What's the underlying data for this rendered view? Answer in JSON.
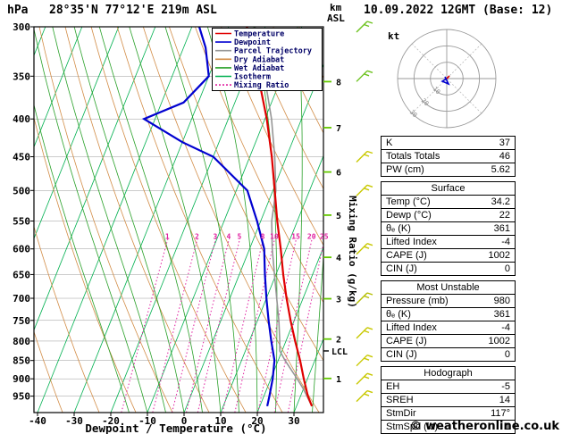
{
  "header": {
    "pressure_unit": "hPa",
    "station": "28°35'N 77°12'E 219m ASL",
    "alt_unit1": "km",
    "alt_unit2": "ASL",
    "datetime": "10.09.2022 12GMT (Base: 12)"
  },
  "footer": {
    "copyright": "© weatheronline.co.uk"
  },
  "legend": [
    {
      "label": "Temperature",
      "color": "#e00000",
      "style": "solid"
    },
    {
      "label": "Dewpoint",
      "color": "#0000d0",
      "style": "solid"
    },
    {
      "label": "Parcel Trajectory",
      "color": "#969696",
      "style": "solid"
    },
    {
      "label": "Dry Adiabat",
      "color": "#d28c46",
      "style": "solid"
    },
    {
      "label": "Wet Adiabat",
      "color": "#28a028",
      "style": "solid"
    },
    {
      "label": "Isotherm",
      "color": "#00b050",
      "style": "solid"
    },
    {
      "label": "Mixing Ratio",
      "color": "#e020a0",
      "style": "dotted"
    }
  ],
  "chart_data": {
    "type": "skewt-log-p-sounding",
    "xlabel": "Dewpoint / Temperature (°C)",
    "pressure_axis_label": "hPa",
    "pressure_ticks": [
      300,
      350,
      400,
      450,
      500,
      550,
      600,
      650,
      700,
      750,
      800,
      850,
      900,
      950
    ],
    "pressure_range": [
      300,
      1000
    ],
    "temp_ticks": [
      -40,
      -30,
      -20,
      -10,
      0,
      10,
      20,
      30
    ],
    "mixing_ratio_axis_label": "Mixing Ratio (g/kg)",
    "mixing_ratio_gkg": [
      1,
      2,
      3,
      4,
      5,
      8,
      10,
      15,
      20,
      25
    ],
    "isotherms_c": {
      "min": -120,
      "max": 40,
      "step": 10
    },
    "dry_adiabats_k": {
      "min": 220,
      "max": 440,
      "step": 10
    },
    "wet_adiabats_c": {
      "min": -15,
      "max": 40,
      "step": 5
    },
    "altitude_ticks_km": [
      {
        "km": 1,
        "pressure_hpa": 899
      },
      {
        "km": 2,
        "pressure_hpa": 795
      },
      {
        "km": 3,
        "pressure_hpa": 701
      },
      {
        "km": 4,
        "pressure_hpa": 616
      },
      {
        "km": 5,
        "pressure_hpa": 540
      },
      {
        "km": 6,
        "pressure_hpa": 472
      },
      {
        "km": 7,
        "pressure_hpa": 411
      },
      {
        "km": 8,
        "pressure_hpa": 356
      }
    ],
    "lcl": {
      "label": "LCL",
      "pressure_hpa": 825
    },
    "temperature_profile": {
      "pressure": [
        980,
        950,
        900,
        850,
        800,
        750,
        700,
        650,
        600,
        550,
        500,
        450,
        400,
        350,
        300
      ],
      "temp_c": [
        34.2,
        32,
        29,
        26,
        22.5,
        19,
        15.5,
        12,
        8.5,
        4.5,
        0.5,
        -4,
        -9.5,
        -16.5,
        -25
      ]
    },
    "dewpoint_profile": {
      "pressure": [
        980,
        950,
        900,
        850,
        800,
        750,
        700,
        650,
        600,
        550,
        500,
        450,
        430,
        400,
        380,
        350,
        320,
        300
      ],
      "dewpoint_c": [
        22,
        21.5,
        20.5,
        19,
        16,
        13,
        10,
        7,
        4,
        -1,
        -7,
        -20,
        -30,
        -43,
        -34,
        -30,
        -34,
        -38
      ]
    },
    "parcel_profile": {
      "pressure": [
        980,
        930,
        900,
        850,
        825,
        800,
        750,
        700,
        650,
        600,
        550,
        500,
        450,
        400,
        350,
        300
      ],
      "temp_c": [
        34.2,
        30.1,
        27.2,
        21.9,
        19.4,
        18.3,
        15.8,
        12.8,
        9.6,
        6.2,
        3.0,
        0.8,
        -3.2,
        -8.2,
        -14.8,
        -22.8
      ]
    },
    "wind_barbs": [
      {
        "pressure": 300,
        "color": "#6cc21e"
      },
      {
        "pressure": 350,
        "color": "#6cc21e"
      },
      {
        "pressure": 450,
        "color": "#c8c800"
      },
      {
        "pressure": 500,
        "color": "#c8c800"
      },
      {
        "pressure": 600,
        "color": "#c8c800"
      },
      {
        "pressure": 700,
        "color": "#b4be00"
      },
      {
        "pressure": 780,
        "color": "#c8c800"
      },
      {
        "pressure": 850,
        "color": "#c8c800"
      },
      {
        "pressure": 900,
        "color": "#c8c800"
      },
      {
        "pressure": 950,
        "color": "#c8c800"
      }
    ],
    "colors": {
      "temperature": "#e00000",
      "dewpoint": "#0000d0",
      "parcel": "#969696",
      "dry_adiabat": "#d28c46",
      "wet_adiabat": "#28a028",
      "isotherm": "#00b050",
      "mixing_ratio": "#e020a0",
      "pressure_line": "#999999",
      "frame": "#000000",
      "km_tick": "#64c800"
    }
  },
  "hodograph": {
    "unit_label": "kt",
    "ring_labels": [
      "10",
      "20",
      "30"
    ]
  },
  "panels": [
    {
      "title": null,
      "rows": [
        [
          "K",
          "37"
        ],
        [
          "Totals Totals",
          "46"
        ],
        [
          "PW (cm)",
          "5.62"
        ]
      ]
    },
    {
      "title": "Surface",
      "rows": [
        [
          "Temp (°C)",
          "34.2"
        ],
        [
          "Dewp (°C)",
          "22"
        ],
        [
          "θₑ (K)",
          "361"
        ],
        [
          "Lifted Index",
          "-4"
        ],
        [
          "CAPE (J)",
          "1002"
        ],
        [
          "CIN (J)",
          "0"
        ]
      ]
    },
    {
      "title": "Most Unstable",
      "rows": [
        [
          "Pressure (mb)",
          "980"
        ],
        [
          "θₑ (K)",
          "361"
        ],
        [
          "Lifted Index",
          "-4"
        ],
        [
          "CAPE (J)",
          "1002"
        ],
        [
          "CIN (J)",
          "0"
        ]
      ]
    },
    {
      "title": "Hodograph",
      "rows": [
        [
          "EH",
          "-5"
        ],
        [
          "SREH",
          "14"
        ],
        [
          "StmDir",
          "117°"
        ],
        [
          "StmSpd (kt)",
          "1"
        ]
      ]
    }
  ]
}
